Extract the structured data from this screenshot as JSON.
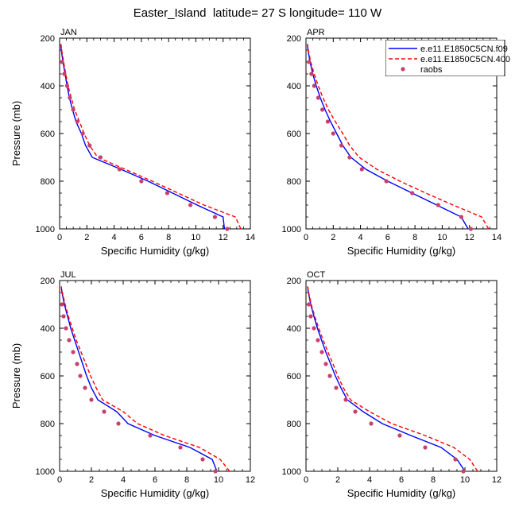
{
  "title": "Easter_Island  latitude= 27 S longitude= 110 W",
  "chart_data": [
    {
      "type": "line",
      "panel": "JAN",
      "xlabel": "Specific Humidity (g/kg)",
      "ylabel": "Pressure (mb)",
      "xlim": [
        0,
        14
      ],
      "ylim": [
        1000,
        200
      ],
      "y_axis": "inverted",
      "xticks": [
        0,
        2,
        4,
        6,
        8,
        10,
        12,
        14
      ],
      "yticks": [
        200,
        400,
        600,
        800,
        1000
      ],
      "grid": false,
      "legend": "none",
      "pressure": [
        1000,
        950,
        900,
        850,
        800,
        750,
        700,
        650,
        600,
        550,
        500,
        450,
        400,
        350,
        300,
        250,
        225
      ],
      "series": [
        {
          "name": "e.e11.E1850C5CN.f09",
          "style": "solid",
          "color": "#0000ff",
          "values": [
            12.1,
            12.0,
            10.1,
            8.3,
            6.5,
            4.5,
            2.4,
            1.9,
            1.6,
            1.2,
            0.95,
            0.72,
            0.55,
            0.4,
            0.25,
            0.12,
            0.08
          ]
        },
        {
          "name": "e.e11.E1850C5CN.400",
          "style": "dashed",
          "color": "#ff0000",
          "values": [
            13.3,
            12.9,
            10.6,
            8.7,
            6.8,
            4.8,
            2.8,
            2.2,
            1.8,
            1.45,
            1.1,
            0.85,
            0.62,
            0.45,
            0.3,
            0.15,
            0.1
          ]
        },
        {
          "name": "raobs",
          "style": "dots",
          "color": "#c8406f",
          "values": [
            12.3,
            11.4,
            9.6,
            7.9,
            6.0,
            4.4,
            3.0,
            2.2,
            1.7,
            1.3,
            1.0,
            0.75,
            0.55,
            0.35,
            0.18
          ]
        }
      ]
    },
    {
      "type": "line",
      "panel": "APR",
      "xlabel": "Specific Humidity (g/kg)",
      "ylabel": "",
      "xlim": [
        0,
        14
      ],
      "ylim": [
        1000,
        200
      ],
      "y_axis": "inverted",
      "xticks": [
        0,
        2,
        4,
        6,
        8,
        10,
        12,
        14
      ],
      "yticks": [
        200,
        400,
        600,
        800,
        1000
      ],
      "grid": false,
      "legend": "top-right",
      "pressure": [
        1000,
        950,
        900,
        850,
        800,
        750,
        700,
        650,
        600,
        550,
        500,
        450,
        400,
        350,
        300,
        250,
        225
      ],
      "series": [
        {
          "name": "e.e11.E1850C5CN.f09",
          "style": "solid",
          "color": "#0000ff",
          "values": [
            11.9,
            11.4,
            9.6,
            7.8,
            6.0,
            4.4,
            3.3,
            2.7,
            2.25,
            1.8,
            1.4,
            1.05,
            0.75,
            0.5,
            0.3,
            0.15,
            0.1
          ]
        },
        {
          "name": "e.e11.E1850C5CN.400",
          "style": "dashed",
          "color": "#ff0000",
          "values": [
            13.4,
            12.9,
            10.8,
            8.8,
            6.9,
            5.2,
            3.9,
            3.2,
            2.7,
            2.15,
            1.65,
            1.25,
            0.9,
            0.6,
            0.35,
            0.17,
            0.11
          ]
        },
        {
          "name": "raobs",
          "style": "dots",
          "color": "#c8406f",
          "values": [
            12.1,
            11.4,
            9.7,
            7.8,
            5.9,
            4.1,
            3.2,
            2.6,
            2.0,
            1.6,
            1.2,
            0.9,
            0.6,
            0.4,
            0.22
          ]
        }
      ]
    },
    {
      "type": "line",
      "panel": "JUL",
      "xlabel": "Specific Humidity (g/kg)",
      "ylabel": "Pressure (mb)",
      "xlim": [
        0,
        12
      ],
      "ylim": [
        1000,
        200
      ],
      "y_axis": "inverted",
      "xticks": [
        0,
        2,
        4,
        6,
        8,
        10,
        12
      ],
      "yticks": [
        200,
        400,
        600,
        800,
        1000
      ],
      "grid": false,
      "legend": "none",
      "pressure": [
        1000,
        950,
        900,
        850,
        800,
        750,
        700,
        650,
        600,
        550,
        500,
        450,
        400,
        350,
        300,
        250,
        225
      ],
      "series": [
        {
          "name": "e.e11.E1850C5CN.f09",
          "style": "solid",
          "color": "#0000ff",
          "values": [
            9.9,
            9.6,
            8.2,
            6.0,
            4.3,
            3.6,
            2.4,
            2.0,
            1.7,
            1.45,
            1.2,
            0.95,
            0.7,
            0.5,
            0.3,
            0.15,
            0.1
          ]
        },
        {
          "name": "e.e11.E1850C5CN.400",
          "style": "dashed",
          "color": "#ff0000",
          "values": [
            10.7,
            10.1,
            8.8,
            6.6,
            4.9,
            4.0,
            2.7,
            2.3,
            1.95,
            1.65,
            1.35,
            1.05,
            0.8,
            0.55,
            0.35,
            0.17,
            0.1
          ]
        },
        {
          "name": "raobs",
          "style": "dots",
          "color": "#c8406f",
          "values": [
            9.8,
            9.0,
            7.6,
            5.7,
            3.7,
            2.8,
            2.0,
            1.6,
            1.3,
            1.1,
            0.85,
            0.6,
            0.4,
            0.25,
            0.15
          ]
        }
      ]
    },
    {
      "type": "line",
      "panel": "OCT",
      "xlabel": "Specific Humidity (g/kg)",
      "ylabel": "",
      "xlim": [
        0,
        12
      ],
      "ylim": [
        1000,
        200
      ],
      "y_axis": "inverted",
      "xticks": [
        0,
        2,
        4,
        6,
        8,
        10,
        12
      ],
      "yticks": [
        200,
        400,
        600,
        800,
        1000
      ],
      "grid": false,
      "legend": "none",
      "pressure": [
        1000,
        950,
        900,
        850,
        800,
        750,
        700,
        650,
        600,
        550,
        500,
        450,
        400,
        350,
        300,
        250,
        225
      ],
      "series": [
        {
          "name": "e.e11.E1850C5CN.f09",
          "style": "solid",
          "color": "#0000ff",
          "values": [
            10.0,
            9.5,
            8.5,
            6.6,
            4.8,
            3.6,
            2.6,
            2.2,
            1.85,
            1.55,
            1.25,
            0.98,
            0.72,
            0.5,
            0.3,
            0.15,
            0.1
          ]
        },
        {
          "name": "e.e11.E1850C5CN.400",
          "style": "dashed",
          "color": "#ff0000",
          "values": [
            10.8,
            10.3,
            9.3,
            7.5,
            5.4,
            4.0,
            2.8,
            2.35,
            2.0,
            1.7,
            1.38,
            1.08,
            0.8,
            0.55,
            0.33,
            0.17,
            0.11
          ]
        },
        {
          "name": "raobs",
          "style": "dots",
          "color": "#c8406f",
          "values": [
            9.9,
            9.4,
            7.5,
            5.9,
            4.1,
            3.1,
            2.5,
            1.9,
            1.5,
            1.25,
            1.0,
            0.75,
            0.5,
            0.3,
            0.18
          ]
        }
      ]
    }
  ]
}
